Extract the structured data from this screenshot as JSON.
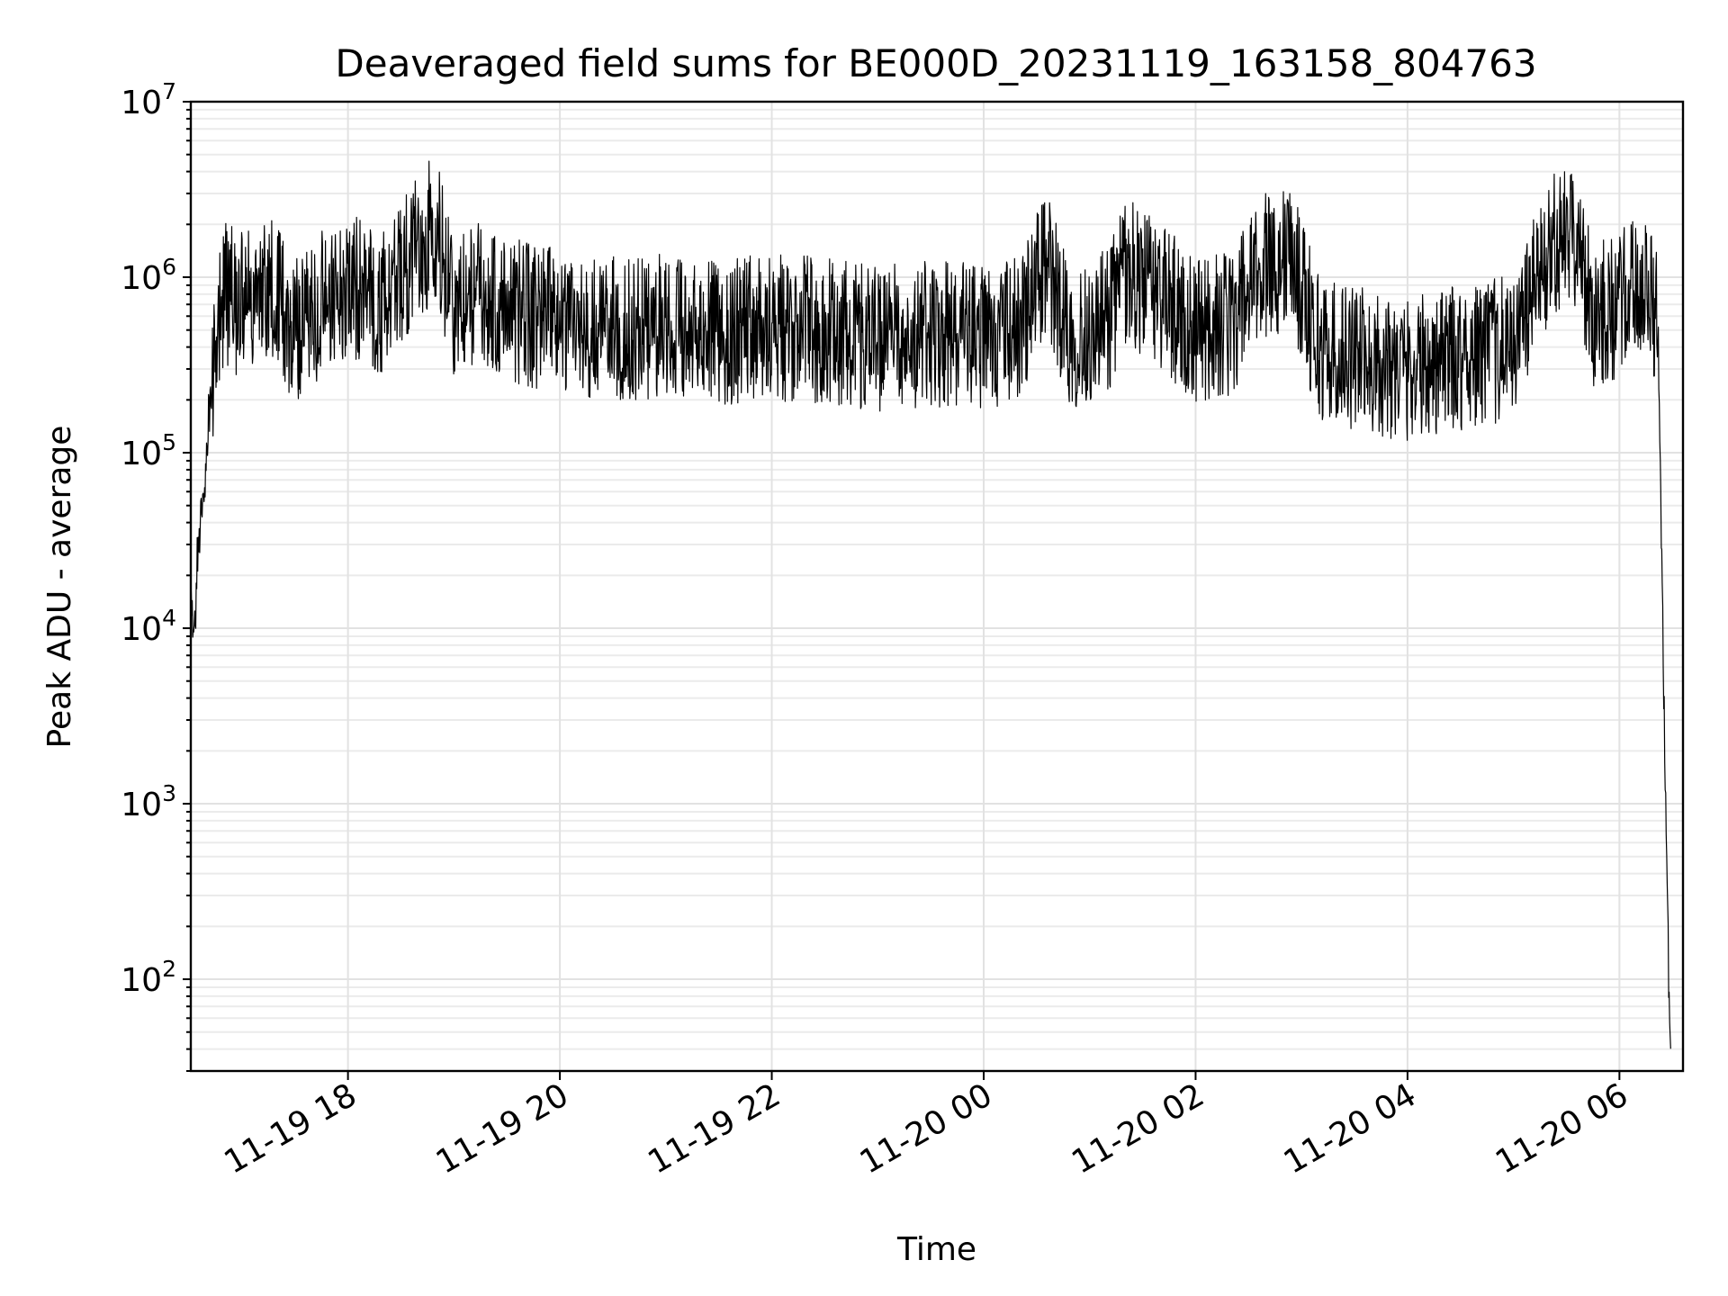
{
  "chart_data": {
    "type": "line",
    "title": "Deaveraged field sums for BE000D_20231119_163158_804763",
    "xlabel": "Time",
    "ylabel": "Peak ADU - average",
    "yscale": "log",
    "ylim": [
      30,
      10000000
    ],
    "xlim": [
      "2023-11-19 16:31",
      "2023-11-20 06:36"
    ],
    "grid": true,
    "line_color": "#000000",
    "x_ticks": [
      {
        "value": "2023-11-19 18:00",
        "label": "11-19 18"
      },
      {
        "value": "2023-11-19 20:00",
        "label": "11-19 20"
      },
      {
        "value": "2023-11-19 22:00",
        "label": "11-19 22"
      },
      {
        "value": "2023-11-20 00:00",
        "label": "11-20 00"
      },
      {
        "value": "2023-11-20 02:00",
        "label": "11-20 02"
      },
      {
        "value": "2023-11-20 04:00",
        "label": "11-20 04"
      },
      {
        "value": "2023-11-20 06:00",
        "label": "11-20 06"
      }
    ],
    "y_ticks": [
      {
        "value": 100,
        "base": "10",
        "exp": "2"
      },
      {
        "value": 1000,
        "base": "10",
        "exp": "3"
      },
      {
        "value": 10000,
        "base": "10",
        "exp": "4"
      },
      {
        "value": 100000,
        "base": "10",
        "exp": "5"
      },
      {
        "value": 1000000,
        "base": "10",
        "exp": "6"
      },
      {
        "value": 10000000,
        "base": "10",
        "exp": "7"
      }
    ],
    "series": [
      {
        "x": [
          "2023-11-19 16:31",
          "2023-11-19 16:33",
          "2023-11-19 16:35",
          "2023-11-19 16:38",
          "2023-11-19 16:41",
          "2023-11-19 16:45",
          "2023-11-19 16:50",
          "2023-11-19 17:00",
          "2023-11-19 17:15",
          "2023-11-19 17:30",
          "2023-11-19 17:45",
          "2023-11-19 18:00",
          "2023-11-19 18:20",
          "2023-11-19 18:40",
          "2023-11-19 18:50",
          "2023-11-19 19:00",
          "2023-11-19 19:20",
          "2023-11-19 19:40",
          "2023-11-19 20:00",
          "2023-11-19 20:30",
          "2023-11-19 21:00",
          "2023-11-19 21:30",
          "2023-11-19 22:00",
          "2023-11-19 22:30",
          "2023-11-19 23:00",
          "2023-11-19 23:30",
          "2023-11-20 00:00",
          "2023-11-20 00:20",
          "2023-11-20 00:35",
          "2023-11-20 00:50",
          "2023-11-20 01:10",
          "2023-11-20 01:20",
          "2023-11-20 01:40",
          "2023-11-20 02:00",
          "2023-11-20 02:20",
          "2023-11-20 02:40",
          "2023-11-20 02:55",
          "2023-11-20 03:10",
          "2023-11-20 03:30",
          "2023-11-20 04:00",
          "2023-11-20 04:30",
          "2023-11-20 05:00",
          "2023-11-20 05:20",
          "2023-11-20 05:35",
          "2023-11-20 05:45",
          "2023-11-20 06:00",
          "2023-11-20 06:15",
          "2023-11-20 06:20",
          "2023-11-20 06:22",
          "2023-11-20 06:24",
          "2023-11-20 06:25",
          "2023-11-20 06:27",
          "2023-11-20 06:29"
        ],
        "values": [
          20000,
          8000,
          30000,
          50000,
          150000,
          400000,
          800000,
          700000,
          900000,
          500000,
          700000,
          900000,
          700000,
          1500000,
          2000000,
          700000,
          800000,
          600000,
          550000,
          500000,
          550000,
          480000,
          520000,
          500000,
          450000,
          480000,
          450000,
          500000,
          1200000,
          450000,
          550000,
          1100000,
          800000,
          500000,
          550000,
          1200000,
          1300000,
          400000,
          350000,
          300000,
          350000,
          400000,
          1400000,
          1800000,
          600000,
          700000,
          900000,
          700000,
          400000,
          20000,
          5000,
          300,
          30
        ]
      }
    ]
  }
}
